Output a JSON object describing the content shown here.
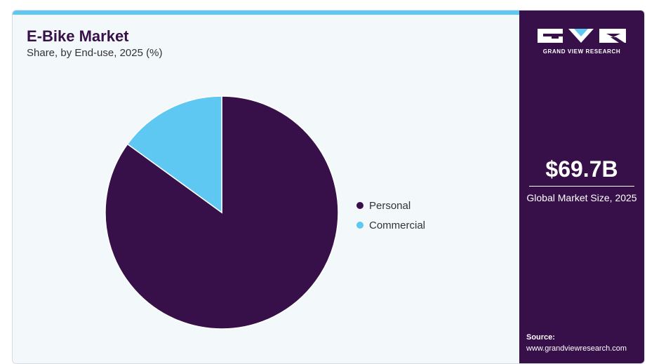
{
  "chart_data": {
    "type": "pie",
    "title": "E-Bike Market",
    "subtitle": "Share, by End-use, 2025 (%)",
    "categories": [
      "Personal",
      "Commercial"
    ],
    "values": [
      85,
      15
    ],
    "colors": [
      "#37104a",
      "#5ec8f2"
    ],
    "start": "12 o'clock",
    "legend_position": "right"
  },
  "sidebar": {
    "logo_text": "GRAND VIEW RESEARCH",
    "kpi_value": "$69.7B",
    "kpi_label": "Global Market Size, 2025",
    "source_label": "Source:",
    "source_url": "www.grandviewresearch.com",
    "background": "#37104a"
  },
  "colors": {
    "accent_bar": "#5ec8f2",
    "title": "#37104a",
    "panel_background": "#f3f8fa"
  }
}
